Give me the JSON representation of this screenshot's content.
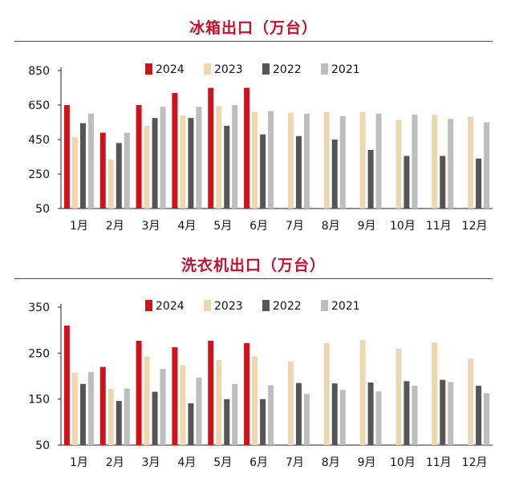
{
  "colors": {
    "2024": "#d0121b",
    "2023": "#ecd8b0",
    "2022": "#555555",
    "2021": "#bdbdbd",
    "title": "#c8102e"
  },
  "chart_data": [
    {
      "type": "bar",
      "title": "冰箱出口（万台）",
      "categories": [
        "1月",
        "2月",
        "3月",
        "4月",
        "5月",
        "6月",
        "7月",
        "8月",
        "9月",
        "10月",
        "11月",
        "12月"
      ],
      "ylim": [
        50,
        850
      ],
      "yticks": [
        50,
        250,
        450,
        650,
        850
      ],
      "legend_position": "top",
      "grid": false,
      "series": [
        {
          "name": "2024",
          "values": [
            650,
            490,
            650,
            720,
            750,
            750,
            null,
            null,
            null,
            null,
            null,
            null
          ]
        },
        {
          "name": "2023",
          "values": [
            465,
            335,
            530,
            590,
            645,
            610,
            605,
            610,
            610,
            565,
            595,
            580
          ]
        },
        {
          "name": "2022",
          "values": [
            545,
            430,
            575,
            575,
            530,
            480,
            470,
            450,
            390,
            355,
            355,
            340
          ]
        },
        {
          "name": "2021",
          "values": [
            600,
            490,
            640,
            640,
            650,
            615,
            600,
            585,
            600,
            595,
            570,
            550
          ]
        }
      ]
    },
    {
      "type": "bar",
      "title": "洗衣机出口（万台）",
      "categories": [
        "1月",
        "2月",
        "3月",
        "4月",
        "5月",
        "6月",
        "7月",
        "8月",
        "9月",
        "10月",
        "11月",
        "12月"
      ],
      "ylim": [
        50,
        350
      ],
      "yticks": [
        50,
        150,
        250,
        350
      ],
      "legend_position": "top",
      "grid": false,
      "series": [
        {
          "name": "2024",
          "values": [
            310,
            220,
            277,
            263,
            277,
            272,
            null,
            null,
            null,
            null,
            null,
            null
          ]
        },
        {
          "name": "2023",
          "values": [
            208,
            172,
            243,
            224,
            235,
            243,
            232,
            272,
            278,
            260,
            273,
            238
          ]
        },
        {
          "name": "2022",
          "values": [
            183,
            146,
            166,
            141,
            150,
            150,
            185,
            184,
            186,
            189,
            192,
            179
          ]
        },
        {
          "name": "2021",
          "values": [
            209,
            173,
            216,
            197,
            183,
            180,
            161,
            170,
            167,
            179,
            187,
            163
          ]
        }
      ]
    }
  ]
}
